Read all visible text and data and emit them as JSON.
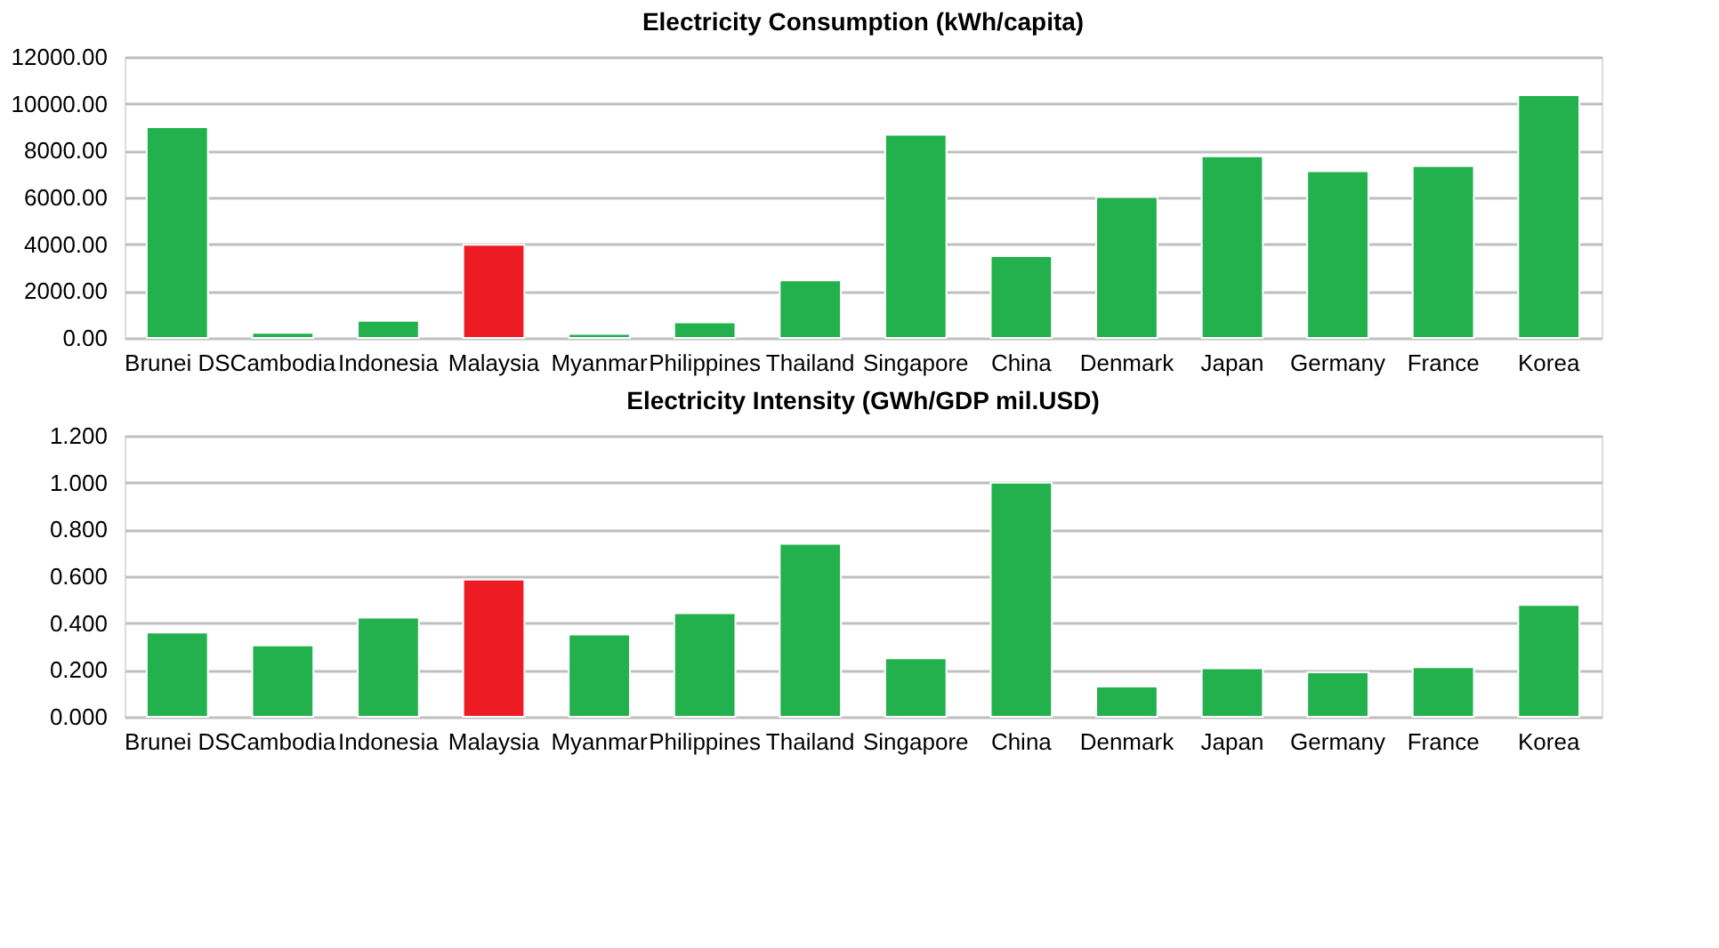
{
  "chart_data": [
    {
      "type": "bar",
      "title": "Electricity  Consumption (kWh/capita)",
      "categories": [
        "Brunei DS",
        "Cambodia",
        "Indonesia",
        "Malaysia",
        "Myanmar",
        "Philippines",
        "Thailand",
        "Singapore",
        "China",
        "Denmark",
        "Japan",
        "Germany",
        "France",
        "Korea"
      ],
      "values": [
        9000,
        220,
        730,
        3980,
        170,
        660,
        2460,
        8680,
        3490,
        6020,
        7760,
        7120,
        7340,
        10370
      ],
      "colors": [
        "#22b14c",
        "#22b14c",
        "#22b14c",
        "#ed1c24",
        "#22b14c",
        "#22b14c",
        "#22b14c",
        "#22b14c",
        "#22b14c",
        "#22b14c",
        "#22b14c",
        "#22b14c",
        "#22b14c",
        "#22b14c"
      ],
      "ylim": [
        0,
        12000
      ],
      "yticks": [
        {
          "value": 0,
          "label": "0.00"
        },
        {
          "value": 2000,
          "label": "2000.00"
        },
        {
          "value": 4000,
          "label": "4000.00"
        },
        {
          "value": 6000,
          "label": "6000.00"
        },
        {
          "value": 8000,
          "label": "8000.00"
        },
        {
          "value": 10000,
          "label": "10000.00"
        },
        {
          "value": 12000,
          "label": "12000.00"
        }
      ],
      "grid": "y"
    },
    {
      "type": "bar",
      "title": "Electricity Intensity (GWh/GDP mil.USD)",
      "categories": [
        "Brunei DS",
        "Cambodia",
        "Indonesia",
        "Malaysia",
        "Myanmar",
        "Philippines",
        "Thailand",
        "Singapore",
        "China",
        "Denmark",
        "Japan",
        "Germany",
        "France",
        "Korea"
      ],
      "values": [
        0.36,
        0.305,
        0.423,
        0.586,
        0.351,
        0.442,
        0.739,
        0.25,
        1.0,
        0.129,
        0.207,
        0.19,
        0.212,
        0.478
      ],
      "colors": [
        "#22b14c",
        "#22b14c",
        "#22b14c",
        "#ed1c24",
        "#22b14c",
        "#22b14c",
        "#22b14c",
        "#22b14c",
        "#22b14c",
        "#22b14c",
        "#22b14c",
        "#22b14c",
        "#22b14c",
        "#22b14c"
      ],
      "ylim": [
        0,
        1.2
      ],
      "yticks": [
        {
          "value": 0,
          "label": "0.000"
        },
        {
          "value": 0.2,
          "label": "0.200"
        },
        {
          "value": 0.4,
          "label": "0.400"
        },
        {
          "value": 0.6,
          "label": "0.600"
        },
        {
          "value": 0.8,
          "label": "0.800"
        },
        {
          "value": 1.0,
          "label": "1.000"
        },
        {
          "value": 1.2,
          "label": "1.200"
        }
      ],
      "grid": "y"
    }
  ]
}
